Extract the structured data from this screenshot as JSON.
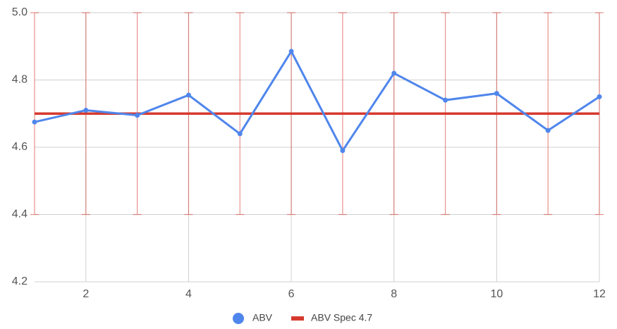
{
  "chart_data": {
    "type": "line",
    "x": [
      1,
      2,
      3,
      4,
      5,
      6,
      7,
      8,
      9,
      10,
      11,
      12
    ],
    "series": [
      {
        "name": "ABV",
        "color": "#4f86ec",
        "values": [
          4.675,
          4.71,
          4.695,
          4.755,
          4.64,
          4.885,
          4.59,
          4.82,
          4.74,
          4.76,
          4.65,
          4.75
        ]
      },
      {
        "name": "ABV Spec 4.7",
        "color": "#d63a2f",
        "values": [
          4.7,
          4.7,
          4.7,
          4.7,
          4.7,
          4.7,
          4.7,
          4.7,
          4.7,
          4.7,
          4.7,
          4.7
        ],
        "errors": [
          0.3,
          0.3,
          0.3,
          0.3,
          0.3,
          0.3,
          0.3,
          0.3,
          0.3,
          0.3,
          0.3,
          0.3
        ]
      }
    ],
    "xlim": [
      1,
      12
    ],
    "xticks": [
      2,
      4,
      6,
      8,
      10,
      12
    ],
    "ylim": [
      4.2,
      5
    ],
    "yticks": [
      4.2,
      4.4,
      4.6,
      4.8,
      {
        "value": 5,
        "label": "5.0"
      }
    ],
    "grid": true,
    "legend": "bottom"
  }
}
